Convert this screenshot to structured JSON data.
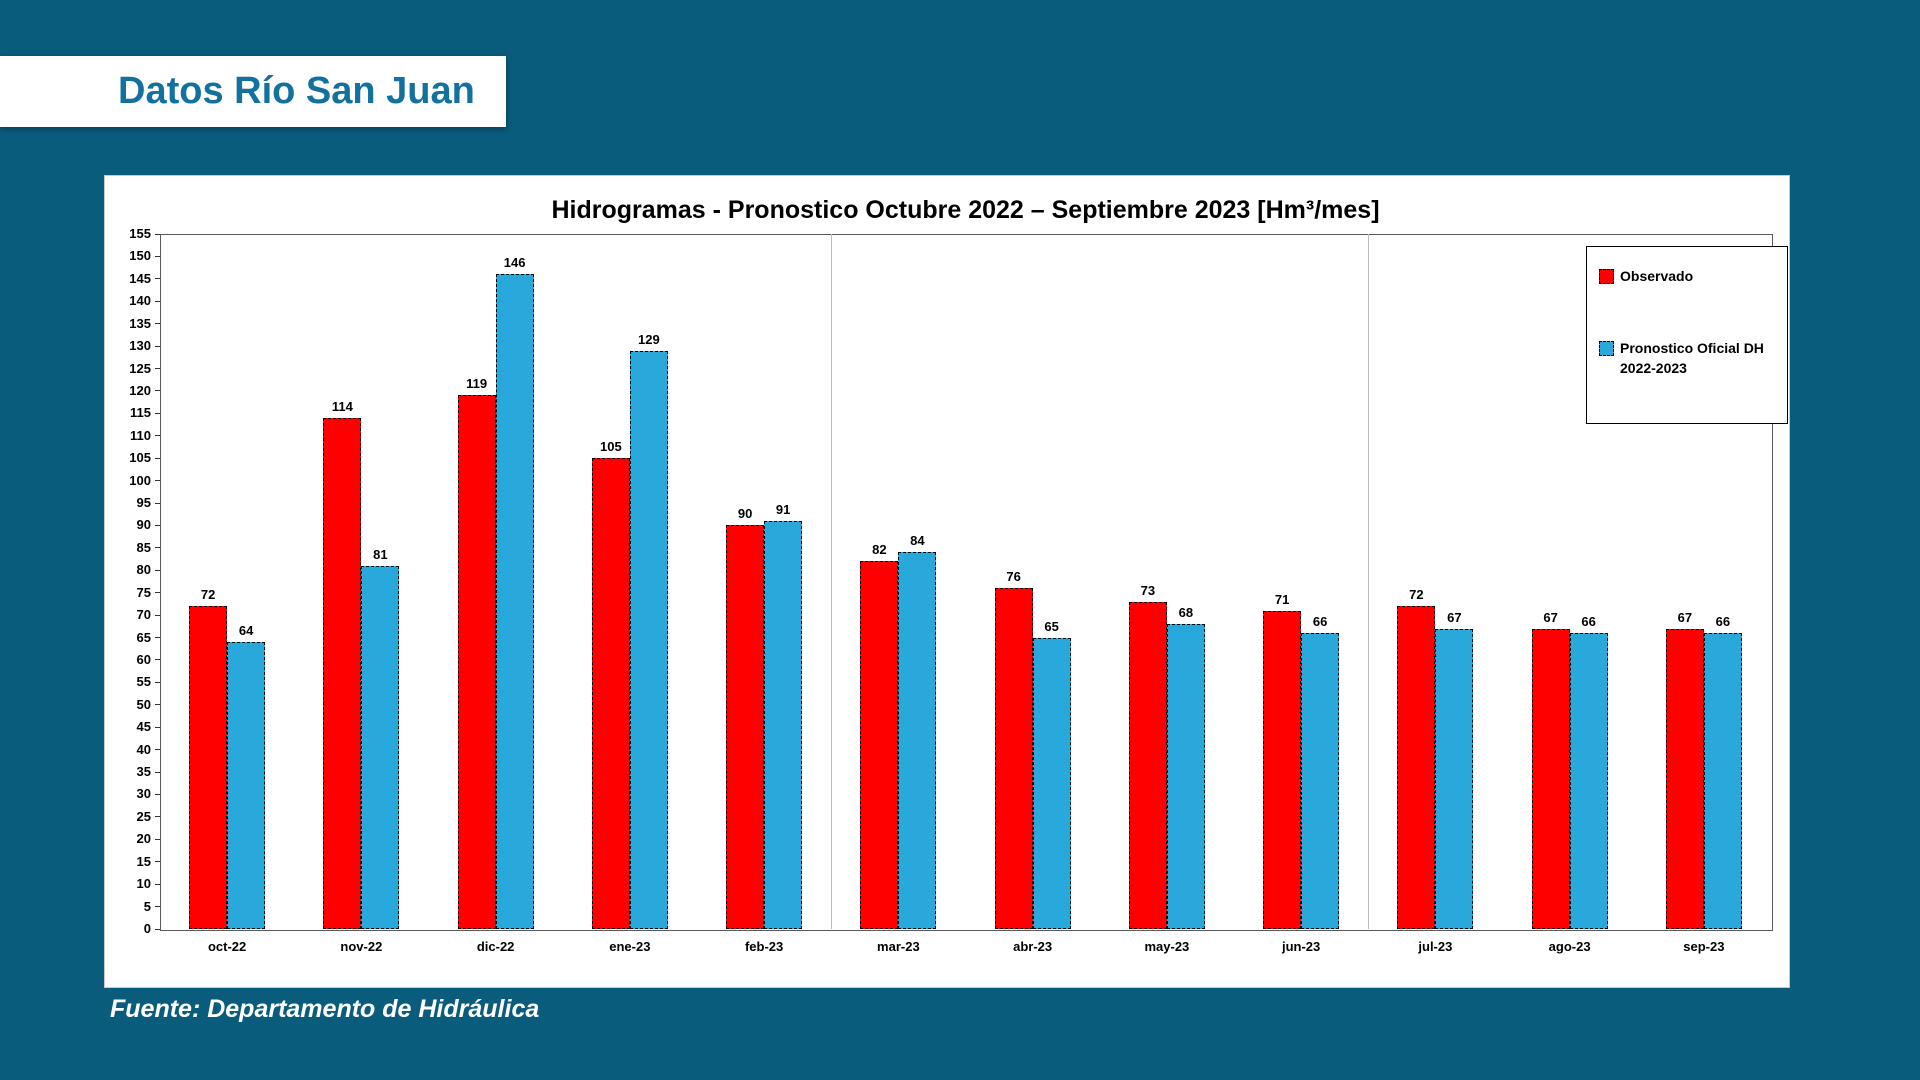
{
  "slide": {
    "title": "Datos Río San Juan",
    "source": "Fuente: Departamento de Hidráulica",
    "background_color": "#0a5c7d",
    "title_color": "#1371a0"
  },
  "chart_data": {
    "type": "bar",
    "title": "Hidrogramas - Pronostico Octubre 2022 – Septiembre 2023 [Hm³/mes]",
    "categories": [
      "oct-22",
      "nov-22",
      "dic-22",
      "ene-23",
      "feb-23",
      "mar-23",
      "abr-23",
      "may-23",
      "jun-23",
      "jul-23",
      "ago-23",
      "sep-23"
    ],
    "series": [
      {
        "name": "Observado",
        "color": "#ff0000",
        "values": [
          72,
          114,
          119,
          105,
          90,
          82,
          76,
          73,
          71,
          72,
          67,
          67
        ]
      },
      {
        "name": "Pronostico Oficial DH 2022-2023",
        "color": "#29a8dc",
        "values": [
          64,
          81,
          146,
          129,
          91,
          84,
          65,
          68,
          66,
          67,
          66,
          66
        ]
      }
    ],
    "xlabel": "",
    "ylabel": "",
    "ylim": [
      0,
      155
    ],
    "ytick_step": 5,
    "grid": "vertical category separators only",
    "separators_after_category_index": [
      5,
      9
    ],
    "legend_position": "top-right",
    "bar_labels": "values shown above each bar"
  }
}
